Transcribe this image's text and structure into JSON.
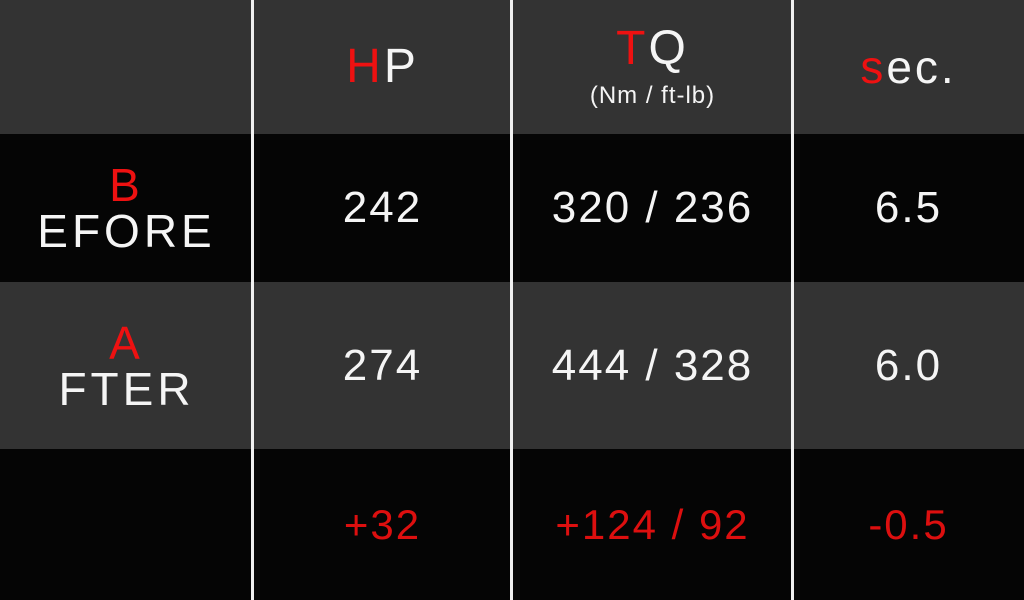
{
  "palette": {
    "row_dark_gray": "#333333",
    "row_black": "#050505",
    "text_white": "#f5f5f5",
    "accent_red": "#ee1111",
    "delta_red": "#dd0f0f",
    "divider_white": "#efefef"
  },
  "header": {
    "hp": {
      "first": "H",
      "rest": "P"
    },
    "tq": {
      "first": "T",
      "rest": "Q",
      "subtitle": "(Nm / ft-lb)"
    },
    "sec": {
      "first": "s",
      "rest": "ec."
    }
  },
  "rows": {
    "before": {
      "label_first": "B",
      "label_rest": "EFORE",
      "hp": "242",
      "tq": "320 / 236",
      "sec": "6.5"
    },
    "after": {
      "label_first": "A",
      "label_rest": "FTER",
      "hp": "274",
      "tq": "444 / 328",
      "sec": "6.0"
    },
    "delta": {
      "label": "",
      "hp": "+32",
      "tq": "+124 / 92",
      "sec": "-0.5"
    }
  },
  "chart_data": {
    "type": "table",
    "columns": [
      "",
      "HP",
      "TQ (Nm / ft-lb)",
      "sec."
    ],
    "rows": [
      [
        "BEFORE",
        "242",
        "320 / 236",
        "6.5"
      ],
      [
        "AFTER",
        "274",
        "444 / 328",
        "6.0"
      ],
      [
        "",
        "+32",
        "+124 / 92",
        "-0.5"
      ]
    ],
    "title": "",
    "layout_hints": {
      "row_backgrounds": [
        "dark-gray",
        "black",
        "dark-gray",
        "black"
      ],
      "delta_row_color": "red",
      "accent_first_letters_red": true,
      "column_dividers": "white vertical lines"
    }
  }
}
